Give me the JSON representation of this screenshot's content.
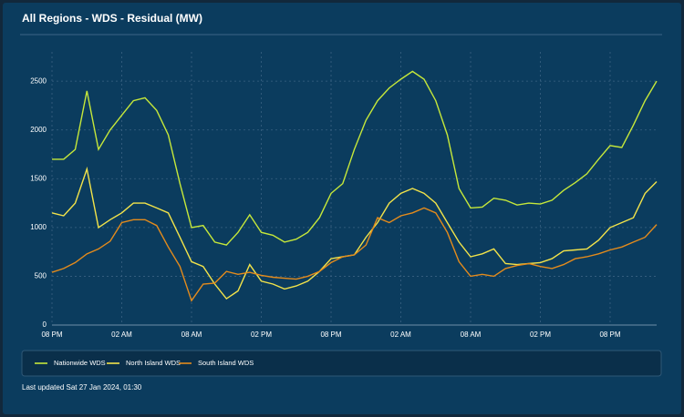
{
  "chart_data": {
    "type": "line",
    "title": "All Regions - WDS - Residual (MW)",
    "categories": [
      "08 PM",
      null,
      null,
      null,
      null,
      null,
      "02 AM",
      null,
      null,
      null,
      null,
      null,
      "08 AM",
      null,
      null,
      null,
      null,
      null,
      "02 PM",
      null,
      null,
      null,
      null,
      null,
      "08 PM",
      null,
      null,
      null,
      null,
      null,
      "02 AM",
      null,
      null,
      null,
      null,
      null,
      "08 AM",
      null,
      null,
      null,
      null,
      null,
      "02 PM",
      null,
      null,
      null,
      null,
      null,
      "08 PM",
      null,
      null,
      null,
      null
    ],
    "series": [
      {
        "name": "Nationwide WDS",
        "color": "#c6e83a",
        "values": [
          1700,
          1700,
          1800,
          2400,
          1800,
          2000,
          2150,
          2300,
          2330,
          2200,
          1950,
          1450,
          1000,
          1020,
          850,
          820,
          950,
          1130,
          950,
          920,
          850,
          880,
          950,
          1100,
          1350,
          1450,
          1800,
          2100,
          2300,
          2430,
          2520,
          2600,
          2520,
          2300,
          1950,
          1400,
          1200,
          1210,
          1300,
          1280,
          1230,
          1250,
          1240,
          1280,
          1380,
          1460,
          1550,
          1700,
          1840,
          1820,
          2050,
          2300,
          2500
        ]
      },
      {
        "name": "North Island WDS",
        "color": "#f2e34a",
        "values": [
          1150,
          1120,
          1250,
          1600,
          1000,
          1080,
          1150,
          1250,
          1250,
          1200,
          1150,
          900,
          650,
          600,
          420,
          270,
          350,
          620,
          450,
          420,
          370,
          400,
          450,
          550,
          680,
          700,
          720,
          900,
          1050,
          1250,
          1350,
          1400,
          1350,
          1250,
          1050,
          850,
          700,
          730,
          780,
          630,
          620,
          630,
          640,
          680,
          760,
          770,
          780,
          870,
          1000,
          1050,
          1100,
          1350,
          1470
        ]
      },
      {
        "name": "South Island WDS",
        "color": "#e48b1c",
        "values": [
          540,
          580,
          640,
          730,
          780,
          860,
          1050,
          1080,
          1080,
          1020,
          800,
          600,
          250,
          420,
          430,
          550,
          520,
          540,
          510,
          490,
          480,
          470,
          500,
          550,
          640,
          700,
          720,
          820,
          1100,
          1050,
          1120,
          1150,
          1200,
          1150,
          950,
          650,
          500,
          520,
          500,
          580,
          610,
          630,
          600,
          580,
          620,
          680,
          700,
          730,
          770,
          800,
          850,
          900,
          1030
        ]
      }
    ],
    "ylim": [
      0,
      2800
    ],
    "yticks": [
      0,
      500,
      1000,
      1500,
      2000,
      2500
    ],
    "grid": true,
    "legend": "bottom",
    "footer": "Last updated Sat 27 Jan 2024, 01:30"
  }
}
